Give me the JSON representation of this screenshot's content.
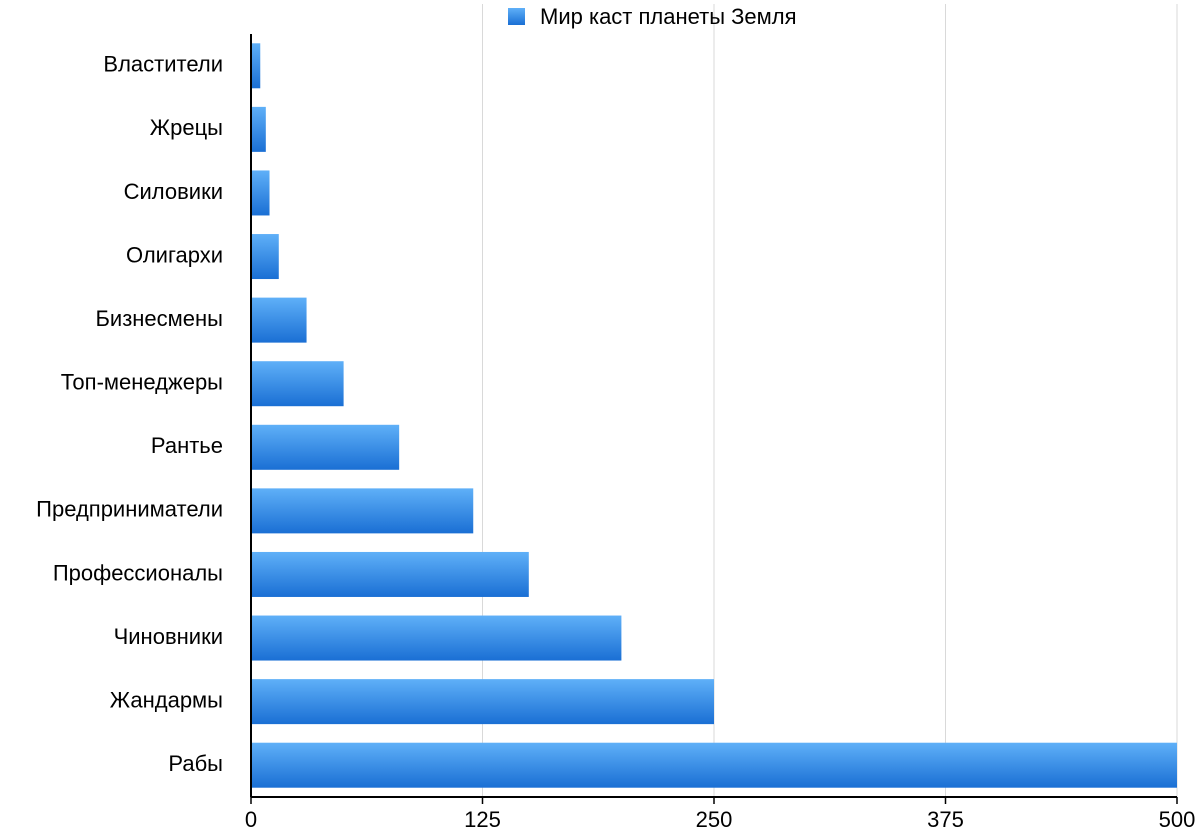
{
  "chart_data": {
    "type": "hbar",
    "categories": [
      "Властители",
      "Жрецы",
      "Силовики",
      "Олигархи",
      "Бизнесмены",
      "Топ-менеджеры",
      "Рантье",
      "Предприниматели",
      "Профессионалы",
      "Чиновники",
      "Жандармы",
      "Рабы"
    ],
    "series": [
      {
        "name": "Мир каст планеты Земля",
        "color": "#1a6fd4",
        "values": [
          5,
          8,
          10,
          15,
          30,
          50,
          80,
          120,
          150,
          200,
          250,
          500
        ]
      }
    ],
    "xlim": [
      0,
      500
    ],
    "xticks": [
      0,
      125,
      250,
      375,
      500
    ],
    "grid": true,
    "legend": "top"
  }
}
